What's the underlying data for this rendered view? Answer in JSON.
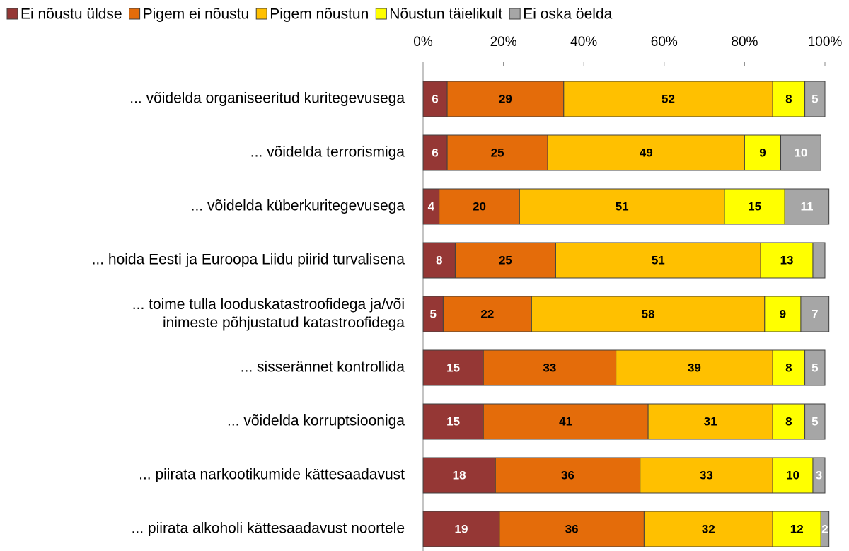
{
  "chart_data": {
    "type": "stacked_barh",
    "categories": [
      "... võidelda organiseeritud kuritegevusega",
      "... võidelda terrorismiga",
      "... võidelda küberkuritegevusega",
      "... hoida Eesti ja Euroopa Liidu piirid turvalisena",
      "... toime tulla looduskatastroofidega ja/või\ninimeste põhjustatud katastroofidega",
      "... sisserännet kontrollida",
      "... võidelda korruptsiooniga",
      "... piirata narkootikumide kättesaadavust",
      "... piirata alkoholi kättesaadavust noortele"
    ],
    "series": [
      {
        "name": "Ei nõustu üldse",
        "color": "#953735",
        "label_color": "#ffffff",
        "values": [
          6,
          6,
          4,
          8,
          5,
          15,
          15,
          18,
          19
        ]
      },
      {
        "name": "Pigem ei nõustu",
        "color": "#e46c0a",
        "label_color": "#000000",
        "values": [
          29,
          25,
          20,
          25,
          22,
          33,
          41,
          36,
          36
        ]
      },
      {
        "name": "Pigem nõustun",
        "color": "#ffc000",
        "label_color": "#000000",
        "values": [
          52,
          49,
          51,
          51,
          58,
          39,
          31,
          33,
          32
        ]
      },
      {
        "name": "Nõustun täielikult",
        "color": "#ffff00",
        "label_color": "#000000",
        "values": [
          8,
          9,
          15,
          13,
          9,
          8,
          8,
          10,
          12
        ]
      },
      {
        "name": "Ei oska öelda",
        "color": "#a6a6a6",
        "label_color": "#ffffff",
        "values": [
          5,
          10,
          11,
          3,
          7,
          5,
          5,
          3,
          2
        ],
        "value_labels": [
          "5",
          "10",
          "11",
          null,
          "7",
          "5",
          "5",
          "3",
          "2"
        ]
      }
    ],
    "xlim": [
      0,
      100
    ],
    "xticks": [
      {
        "value": 0,
        "label": "0%"
      },
      {
        "value": 20,
        "label": "20%"
      },
      {
        "value": 40,
        "label": "40%"
      },
      {
        "value": 60,
        "label": "60%"
      },
      {
        "value": 80,
        "label": "80%"
      },
      {
        "value": 100,
        "label": "100%"
      }
    ],
    "legend": "top"
  }
}
